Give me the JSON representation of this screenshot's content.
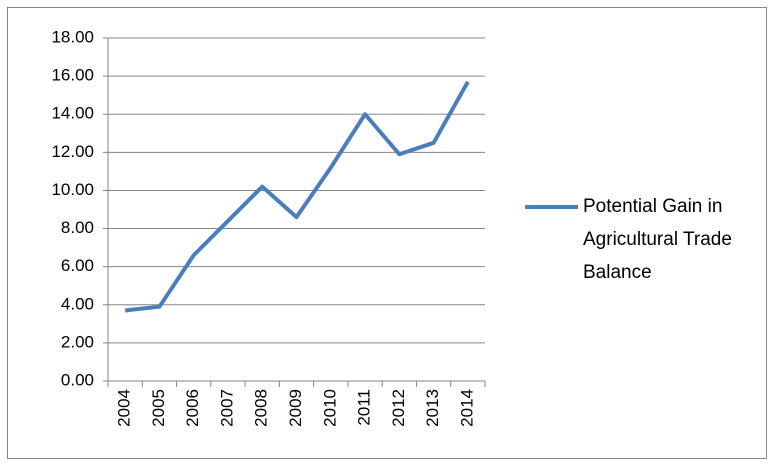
{
  "chart_data": {
    "type": "line",
    "categories": [
      "2004",
      "2005",
      "2006",
      "2007",
      "2008",
      "2009",
      "2010",
      "2011",
      "2012",
      "2013",
      "2014"
    ],
    "series": [
      {
        "name": "Potential Gain in Agricultural Trade Balance",
        "color": "#4a7ebb",
        "values": [
          3.7,
          3.9,
          6.6,
          8.4,
          10.2,
          8.6,
          11.2,
          14.0,
          11.9,
          12.5,
          15.7
        ]
      }
    ],
    "ylim": [
      0,
      18
    ],
    "yticks": [
      {
        "value": 0,
        "label": "0.00"
      },
      {
        "value": 2,
        "label": "2.00"
      },
      {
        "value": 4,
        "label": "4.00"
      },
      {
        "value": 6,
        "label": "6.00"
      },
      {
        "value": 8,
        "label": "8.00"
      },
      {
        "value": 10,
        "label": "10.00"
      },
      {
        "value": 12,
        "label": "12.00"
      },
      {
        "value": 14,
        "label": "14.00"
      },
      {
        "value": 16,
        "label": "16.00"
      },
      {
        "value": 18,
        "label": "18.00"
      }
    ],
    "grid": true,
    "legend": "right"
  }
}
